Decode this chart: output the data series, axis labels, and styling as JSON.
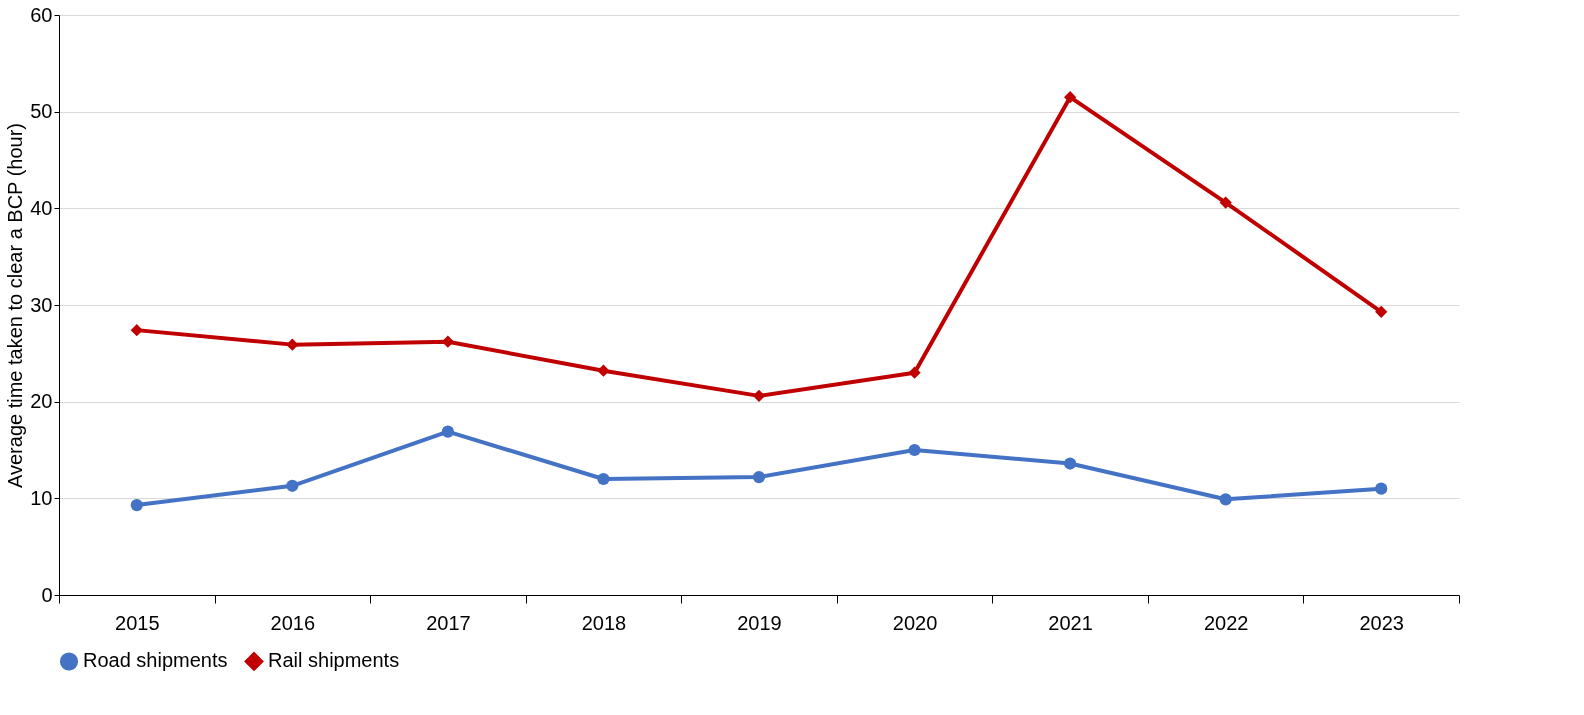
{
  "chart_data": {
    "type": "line",
    "ylabel": "Average time taken to clear a BCP (hour)",
    "categories": [
      "2015",
      "2016",
      "2017",
      "2018",
      "2019",
      "2020",
      "2021",
      "2022",
      "2023"
    ],
    "series": [
      {
        "name": "Road shipments",
        "color": "#4472c4",
        "marker": "circle",
        "values": [
          9.3,
          11.3,
          16.9,
          12.0,
          12.2,
          15.0,
          13.6,
          9.9,
          11.0
        ]
      },
      {
        "name": "Rail shipments",
        "color": "#c00000",
        "marker": "diamond",
        "values": [
          27.4,
          25.9,
          26.2,
          23.2,
          20.6,
          23.0,
          51.5,
          40.6,
          29.3
        ]
      }
    ],
    "ylim": [
      0,
      60
    ],
    "yticks": [
      0,
      10,
      20,
      30,
      40,
      50,
      60
    ],
    "grid": "y",
    "legend": "bottom"
  }
}
